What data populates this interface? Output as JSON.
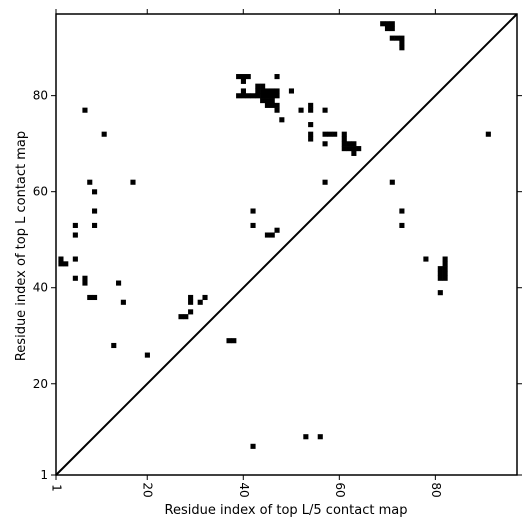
{
  "chart_data": {
    "type": "heatmap",
    "title": "",
    "xlabel": "Residue index of top L/5 contact map",
    "ylabel": "Residue index of top L contact map",
    "xlim": [
      1,
      97
    ],
    "ylim": [
      1,
      97
    ],
    "xticks": [
      1,
      20,
      40,
      60,
      80
    ],
    "yticks": [
      1,
      20,
      40,
      60,
      80
    ],
    "grid": false,
    "diagonal_line": true,
    "cell_color": "#000000",
    "cells": [
      [
        69,
        95
      ],
      [
        70,
        95
      ],
      [
        71,
        95
      ],
      [
        70,
        94
      ],
      [
        71,
        94
      ],
      [
        71,
        92
      ],
      [
        72,
        92
      ],
      [
        73,
        92
      ],
      [
        73,
        91
      ],
      [
        73,
        90
      ],
      [
        39,
        84
      ],
      [
        40,
        84
      ],
      [
        41,
        84
      ],
      [
        40,
        83
      ],
      [
        47,
        84
      ],
      [
        40,
        81
      ],
      [
        43,
        82
      ],
      [
        44,
        82
      ],
      [
        45,
        81
      ],
      [
        46,
        81
      ],
      [
        47,
        81
      ],
      [
        43,
        81
      ],
      [
        44,
        81
      ],
      [
        50,
        81
      ],
      [
        39,
        80
      ],
      [
        40,
        80
      ],
      [
        41,
        80
      ],
      [
        42,
        80
      ],
      [
        43,
        80
      ],
      [
        44,
        80
      ],
      [
        45,
        80
      ],
      [
        46,
        80
      ],
      [
        47,
        80
      ],
      [
        44,
        79
      ],
      [
        45,
        79
      ],
      [
        46,
        79
      ],
      [
        45,
        78
      ],
      [
        46,
        78
      ],
      [
        47,
        78
      ],
      [
        47,
        77
      ],
      [
        48,
        75
      ],
      [
        52,
        77
      ],
      [
        54,
        78
      ],
      [
        54,
        77
      ],
      [
        57,
        77
      ],
      [
        54,
        74
      ],
      [
        54,
        72
      ],
      [
        54,
        71
      ],
      [
        57,
        72
      ],
      [
        58,
        72
      ],
      [
        59,
        72
      ],
      [
        61,
        72
      ],
      [
        61,
        71
      ],
      [
        61,
        70
      ],
      [
        62,
        70
      ],
      [
        63,
        70
      ],
      [
        61,
        69
      ],
      [
        62,
        69
      ],
      [
        63,
        69
      ],
      [
        64,
        69
      ],
      [
        63,
        68
      ],
      [
        57,
        70
      ],
      [
        7,
        77
      ],
      [
        11,
        72
      ],
      [
        91,
        72
      ],
      [
        8,
        62
      ],
      [
        9,
        60
      ],
      [
        17,
        62
      ],
      [
        57,
        62
      ],
      [
        71,
        62
      ],
      [
        9,
        56
      ],
      [
        42,
        56
      ],
      [
        73,
        56
      ],
      [
        5,
        53
      ],
      [
        9,
        53
      ],
      [
        42,
        53
      ],
      [
        73,
        53
      ],
      [
        5,
        51
      ],
      [
        45,
        51
      ],
      [
        46,
        51
      ],
      [
        47,
        52
      ],
      [
        2,
        46
      ],
      [
        5,
        46
      ],
      [
        2,
        45
      ],
      [
        3,
        45
      ],
      [
        78,
        46
      ],
      [
        82,
        46
      ],
      [
        82,
        45
      ],
      [
        81,
        44
      ],
      [
        82,
        44
      ],
      [
        81,
        43
      ],
      [
        82,
        43
      ],
      [
        81,
        42
      ],
      [
        82,
        42
      ],
      [
        5,
        42
      ],
      [
        7,
        42
      ],
      [
        7,
        41
      ],
      [
        14,
        41
      ],
      [
        81,
        39
      ],
      [
        8,
        38
      ],
      [
        9,
        38
      ],
      [
        29,
        38
      ],
      [
        32,
        38
      ],
      [
        29,
        37
      ],
      [
        31,
        37
      ],
      [
        15,
        37
      ],
      [
        29,
        35
      ],
      [
        27,
        34
      ],
      [
        28,
        34
      ],
      [
        37,
        29
      ],
      [
        38,
        29
      ],
      [
        13,
        28
      ],
      [
        20,
        26
      ],
      [
        42,
        7
      ],
      [
        53,
        9
      ],
      [
        56,
        9
      ]
    ]
  }
}
